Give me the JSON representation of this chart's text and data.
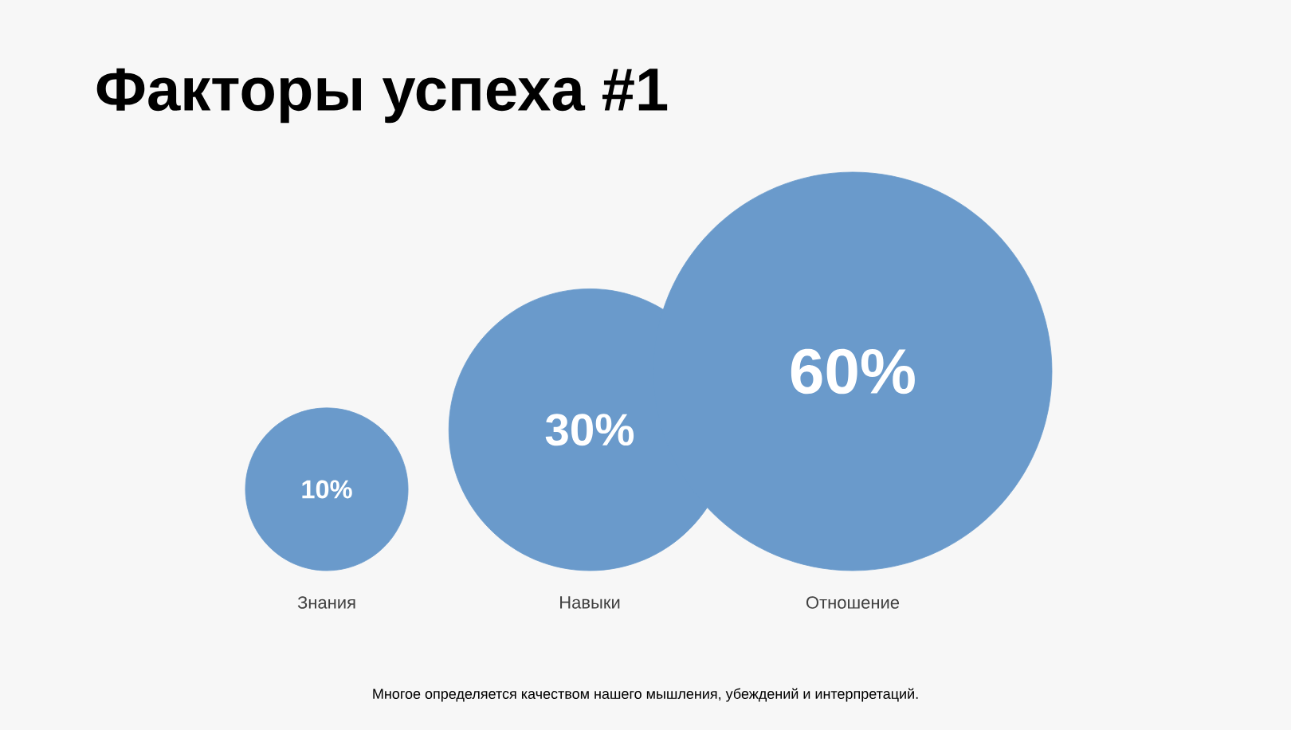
{
  "chart_data": {
    "type": "other",
    "title": "Факторы успеха #1",
    "categories": [
      "Знания",
      "Навыки",
      "Отношение"
    ],
    "values": [
      10,
      30,
      60
    ],
    "value_labels": [
      "10%",
      "30%",
      "60%"
    ],
    "colors": [
      "#6a9acb",
      "#6a9acb",
      "#6a9acb"
    ],
    "annotations": [
      "Многое определяется качеством нашего мышления, убеждений и интерпретаций."
    ]
  }
}
